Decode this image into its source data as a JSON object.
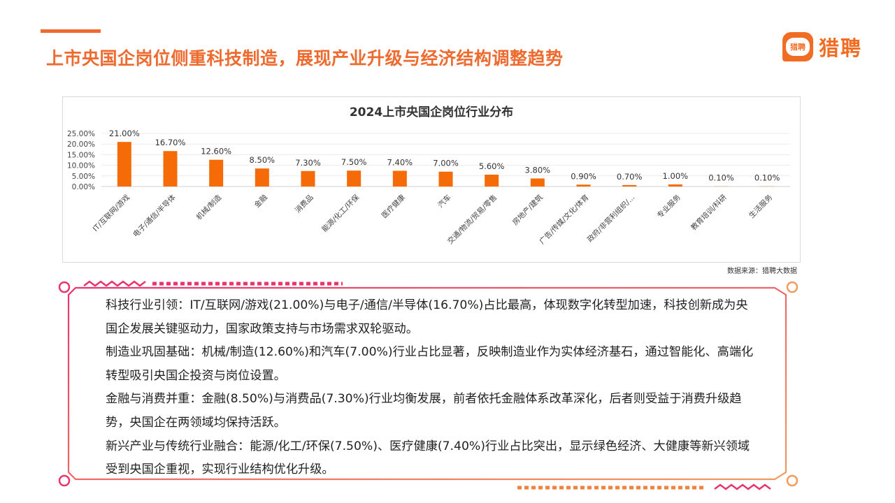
{
  "header": {
    "title": "上市央国企岗位侧重科技制造，展现产业升级与经济结构调整趋势"
  },
  "logo": {
    "mark_text": "猎聘",
    "text": "猎聘"
  },
  "colors": {
    "accent": "#ee6a2e",
    "bar": "#f46b08",
    "frame_pink": "#e8356e",
    "frame_orange": "#f39a5f"
  },
  "chart_data": {
    "type": "bar",
    "title": "2024上市央国企岗位行业分布",
    "categories": [
      "IT/互联网/游戏",
      "电子/通信/半导体",
      "机械/制造",
      "金融",
      "消费品",
      "能源/化工/环保",
      "医疗健康",
      "汽车",
      "交通/物流/贸易/零售",
      "房地产/建筑",
      "广告/传媒/文化/体育",
      "政府/非营利组织/...",
      "专业服务",
      "教育培训/科研",
      "生活服务"
    ],
    "values": [
      21.0,
      16.7,
      12.6,
      8.5,
      7.3,
      7.5,
      7.4,
      7.0,
      5.6,
      3.8,
      0.9,
      0.7,
      1.0,
      0.1,
      0.1
    ],
    "data_labels": [
      "21.00%",
      "16.70%",
      "12.60%",
      "8.50%",
      "7.30%",
      "7.50%",
      "7.40%",
      "7.00%",
      "5.60%",
      "3.80%",
      "0.90%",
      "0.70%",
      "1.00%",
      "0.10%",
      "0.10%"
    ],
    "y_ticks": [
      "0.00%",
      "5.00%",
      "10.00%",
      "15.00%",
      "20.00%",
      "25.00%"
    ],
    "ylim": [
      0,
      25
    ],
    "xlabel": "",
    "ylabel": "",
    "grid": true,
    "legend": "none"
  },
  "source": "数据来源：猎聘大数据",
  "notes": [
    "科技行业引领：IT/互联网/游戏(21.00%)与电子/通信/半导体(16.70%)占比最高，体现数字化转型加速，科技创新成为央国企发展关键驱动力，国家政策支持与市场需求双轮驱动。",
    "制造业巩固基础：机械/制造(12.60%)和汽车(7.00%)行业占比显著，反映制造业作为实体经济基石，通过智能化、高端化转型吸引央国企投资与岗位设置。",
    "金融与消费并重：金融(8.50%)与消费品(7.30%)行业均衡发展，前者依托金融体系改革深化，后者则受益于消费升级趋势，央国企在两领域均保持活跃。",
    "新兴产业与传统行业融合：能源/化工/环保(7.50%)、医疗健康(7.40%)行业占比突出，显示绿色经济、大健康等新兴领域受到央国企重视，实现行业结构优化升级。"
  ]
}
